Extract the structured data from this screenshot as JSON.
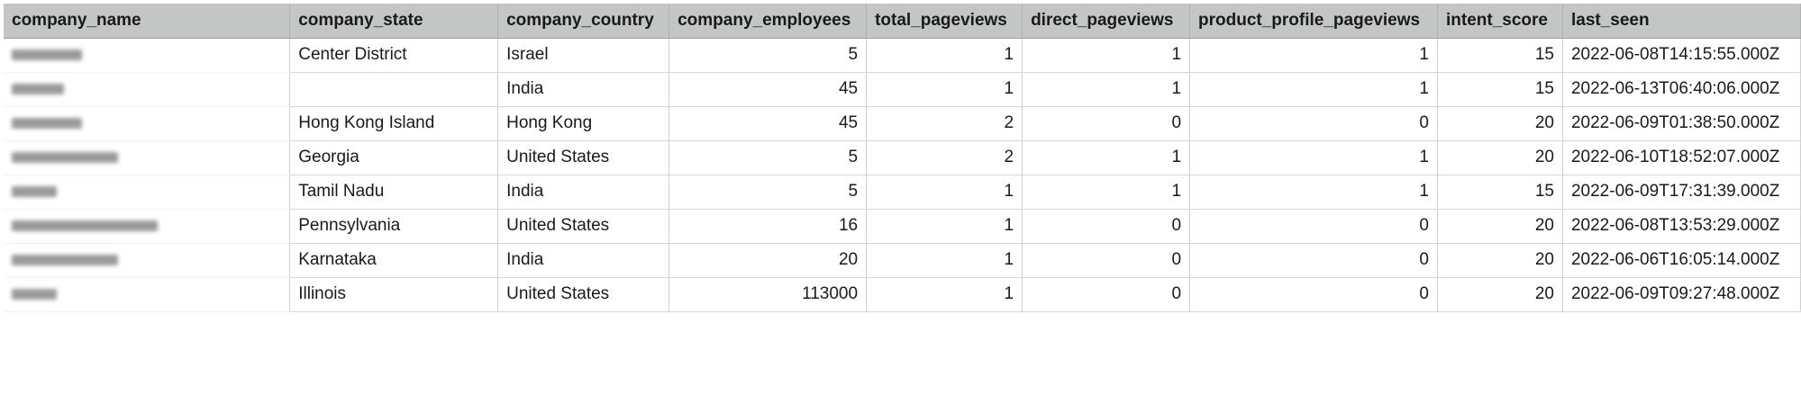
{
  "table": {
    "columns": [
      "company_name",
      "company_state",
      "company_country",
      "company_employees",
      "total_pageviews",
      "direct_pageviews",
      "product_profile_pageviews",
      "intent_score",
      "last_seen"
    ],
    "rows": [
      {
        "company_state": "Center District",
        "company_country": "Israel",
        "company_employees": "5",
        "total_pageviews": "1",
        "direct_pageviews": "1",
        "product_profile_pageviews": "1",
        "intent_score": "15",
        "last_seen": "2022-06-08T14:15:55.000Z"
      },
      {
        "company_state": "",
        "company_country": "India",
        "company_employees": "45",
        "total_pageviews": "1",
        "direct_pageviews": "1",
        "product_profile_pageviews": "1",
        "intent_score": "15",
        "last_seen": "2022-06-13T06:40:06.000Z"
      },
      {
        "company_state": "Hong Kong Island",
        "company_country": "Hong Kong",
        "company_employees": "45",
        "total_pageviews": "2",
        "direct_pageviews": "0",
        "product_profile_pageviews": "0",
        "intent_score": "20",
        "last_seen": "2022-06-09T01:38:50.000Z"
      },
      {
        "company_state": "Georgia",
        "company_country": "United States",
        "company_employees": "5",
        "total_pageviews": "2",
        "direct_pageviews": "1",
        "product_profile_pageviews": "1",
        "intent_score": "20",
        "last_seen": "2022-06-10T18:52:07.000Z"
      },
      {
        "company_state": "Tamil Nadu",
        "company_country": "India",
        "company_employees": "5",
        "total_pageviews": "1",
        "direct_pageviews": "1",
        "product_profile_pageviews": "1",
        "intent_score": "15",
        "last_seen": "2022-06-09T17:31:39.000Z"
      },
      {
        "company_state": "Pennsylvania",
        "company_country": "United States",
        "company_employees": "16",
        "total_pageviews": "1",
        "direct_pageviews": "0",
        "product_profile_pageviews": "0",
        "intent_score": "20",
        "last_seen": "2022-06-08T13:53:29.000Z"
      },
      {
        "company_state": "Karnataka",
        "company_country": "India",
        "company_employees": "20",
        "total_pageviews": "1",
        "direct_pageviews": "0",
        "product_profile_pageviews": "0",
        "intent_score": "20",
        "last_seen": "2022-06-06T16:05:14.000Z"
      },
      {
        "company_state": "Illinois",
        "company_country": "United States",
        "company_employees": "113000",
        "total_pageviews": "1",
        "direct_pageviews": "0",
        "product_profile_pageviews": "0",
        "intent_score": "20",
        "last_seen": "2022-06-09T09:27:48.000Z"
      }
    ]
  },
  "colors": {
    "header_bg": "#c4c6c5",
    "grid_line": "#d0d0d0",
    "redaction": "#9a9a9a"
  }
}
